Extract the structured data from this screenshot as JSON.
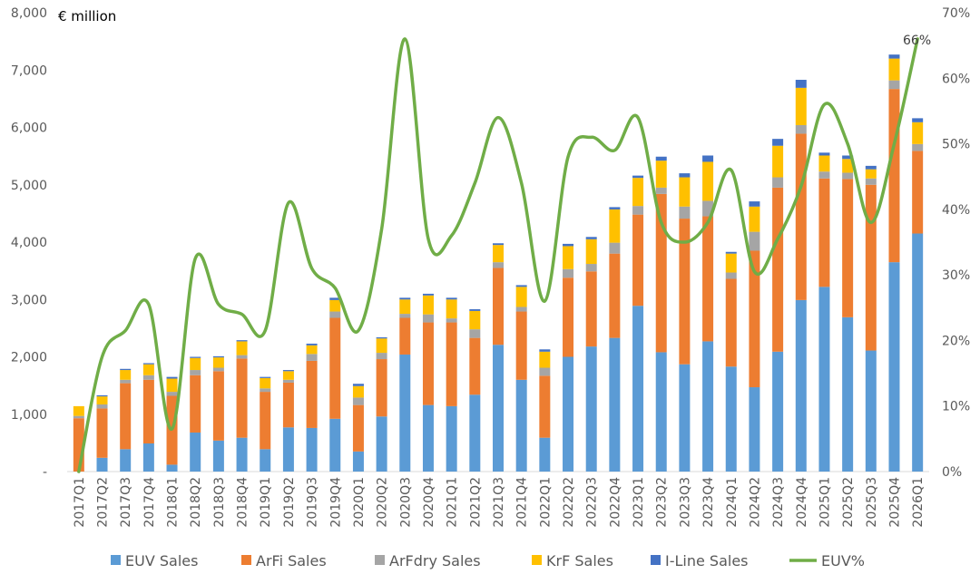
{
  "chart_data": {
    "type": "bar",
    "stacked": true,
    "unit_label": "€ million",
    "categories": [
      "2017Q1",
      "2017Q2",
      "2017Q3",
      "2017Q4",
      "2018Q1",
      "2018Q2",
      "2018Q3",
      "2018Q4",
      "2019Q1",
      "2019Q2",
      "2019Q3",
      "2019Q4",
      "2020Q1",
      "2020Q2",
      "2020Q3",
      "2020Q4",
      "2021Q1",
      "2021Q2",
      "2021Q3",
      "2021Q4",
      "2022Q1",
      "2022Q2",
      "2022Q3",
      "2022Q4",
      "2023Q1",
      "2023Q2",
      "2023Q3",
      "2023Q4",
      "2024Q1",
      "2024Q2",
      "2024Q3",
      "2024Q4",
      "2025Q1",
      "2025Q2",
      "2025Q3",
      "2025Q4",
      "2026Q1"
    ],
    "y_ticks": [
      "-",
      "1,000",
      "2,000",
      "3,000",
      "4,000",
      "5,000",
      "6,000",
      "7,000",
      "8,000"
    ],
    "ylim": [
      0,
      8000
    ],
    "y2_ticks": [
      "0%",
      "10%",
      "20%",
      "30%",
      "40%",
      "50%",
      "60%",
      "70%"
    ],
    "y2lim": [
      0,
      70
    ],
    "series": [
      {
        "name": "EUV Sales",
        "color": "#5B9BD5",
        "values": [
          0,
          240,
          390,
          490,
          120,
          680,
          540,
          590,
          390,
          770,
          760,
          920,
          350,
          960,
          2040,
          1160,
          1140,
          1340,
          2210,
          1600,
          590,
          2000,
          2180,
          2330,
          2890,
          2080,
          1870,
          2270,
          1830,
          1470,
          2090,
          2990,
          3220,
          2690,
          2110,
          3650,
          4150
        ]
      },
      {
        "name": "ArFi Sales",
        "color": "#ED7D31",
        "values": [
          930,
          860,
          1150,
          1110,
          1200,
          1000,
          1210,
          1380,
          1000,
          780,
          1170,
          1760,
          810,
          1000,
          640,
          1440,
          1460,
          990,
          1340,
          1190,
          1080,
          1380,
          1310,
          1470,
          1590,
          2760,
          2540,
          2180,
          1530,
          2380,
          2860,
          2900,
          1890,
          2410,
          2890,
          3020,
          1440
        ]
      },
      {
        "name": "ArFdry Sales",
        "color": "#A5A5A5",
        "values": [
          40,
          70,
          60,
          80,
          70,
          90,
          60,
          60,
          60,
          50,
          120,
          110,
          130,
          110,
          70,
          140,
          70,
          150,
          100,
          80,
          140,
          150,
          130,
          190,
          150,
          110,
          210,
          270,
          110,
          330,
          180,
          150,
          120,
          110,
          110,
          150,
          120
        ]
      },
      {
        "name": "KrF Sales",
        "color": "#FFC000",
        "values": [
          170,
          140,
          170,
          190,
          230,
          210,
          180,
          240,
          180,
          150,
          150,
          200,
          200,
          250,
          250,
          330,
          330,
          320,
          300,
          350,
          280,
          400,
          430,
          580,
          490,
          470,
          510,
          680,
          330,
          440,
          550,
          650,
          280,
          240,
          160,
          380,
          380
        ]
      },
      {
        "name": "I-Line Sales",
        "color": "#4472C4",
        "values": [
          0,
          20,
          20,
          20,
          30,
          20,
          20,
          20,
          20,
          20,
          30,
          40,
          40,
          20,
          30,
          30,
          30,
          30,
          30,
          30,
          40,
          40,
          40,
          40,
          40,
          70,
          70,
          110,
          30,
          90,
          120,
          140,
          50,
          60,
          60,
          70,
          70
        ]
      }
    ],
    "line": {
      "name": "EUV%",
      "color": "#70AD47",
      "values": [
        0,
        17.5,
        21.5,
        25.5,
        6.5,
        32.5,
        25.5,
        24,
        21.5,
        41,
        31,
        28,
        21.5,
        37,
        66,
        35.5,
        36,
        44,
        54,
        44,
        26,
        48,
        51,
        49,
        54,
        38,
        35,
        38,
        46,
        30.5,
        35.5,
        43.5,
        56,
        50,
        38,
        50,
        66
      ]
    },
    "annotation": "66%",
    "legend_position": "bottom",
    "grid": false
  }
}
